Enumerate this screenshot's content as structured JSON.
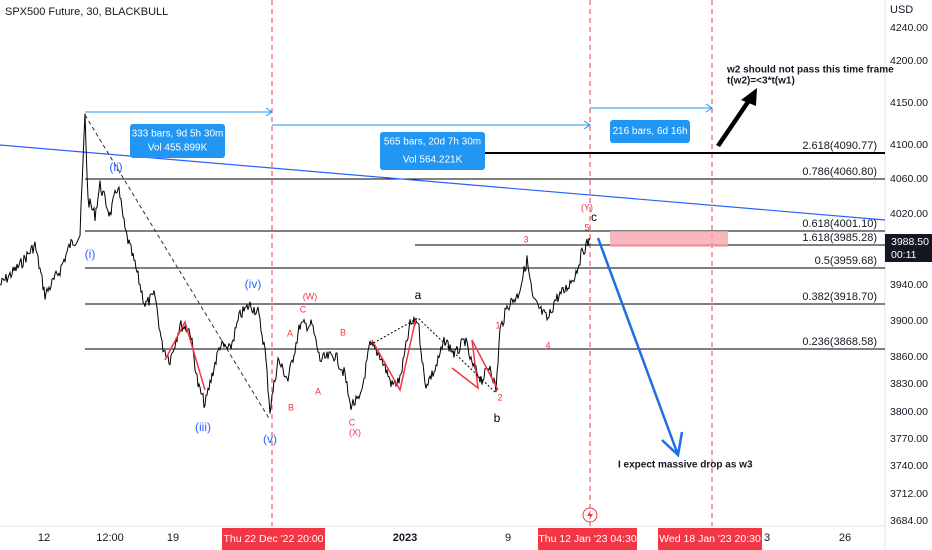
{
  "header": {
    "title": "SPX500 Future, 30, BLACKBULL"
  },
  "price_axis": {
    "currency": "USD",
    "labels": [
      "4240.00",
      "4200.00",
      "4150.00",
      "4100.00",
      "4060.00",
      "4020.00",
      "3940.00",
      "3900.00",
      "3860.00",
      "3830.00",
      "3800.00",
      "3770.00",
      "3740.00",
      "3712.00",
      "3684.00"
    ],
    "last_price": "3988.50",
    "countdown": "00:11"
  },
  "time_axis": {
    "labels": [
      "12",
      "12:00",
      "19",
      "2023",
      "9",
      "3",
      "26"
    ],
    "highlights": [
      "Thu 22 Dec '22  20:00",
      "Thu 12 Jan '23  04:30",
      "Wed 18 Jan '23  20:30"
    ]
  },
  "fib_levels": [
    "2.618(4090.77)",
    "0.786(4060.80)",
    "0.618(4001.10)",
    "1.618(3985.28)",
    "0.5(3959.68)",
    "0.382(3918.70)",
    "0.236(3868.58)"
  ],
  "measurements": [
    {
      "bars": "333 bars, 9d 5h 30m",
      "vol": "Vol 455.899K"
    },
    {
      "bars": "565 bars, 20d 7h 30m",
      "vol": "Vol 564.221K"
    },
    {
      "bars": "216 bars, 6d 16h"
    }
  ],
  "annotations": [
    "w2 should not pass this time frame",
    "t(w2)=<3*t(w1)",
    "I expect massive drop as w3"
  ],
  "wave_labels": [
    "(i)",
    "(ii)",
    "(iii)",
    "(iv)",
    "(v)",
    "(W)",
    "C",
    "A",
    "B",
    "A",
    "B",
    "C",
    "(X)",
    "a",
    "b",
    "1",
    "2",
    "3",
    "4",
    "5",
    "(Y)",
    "c"
  ]
}
